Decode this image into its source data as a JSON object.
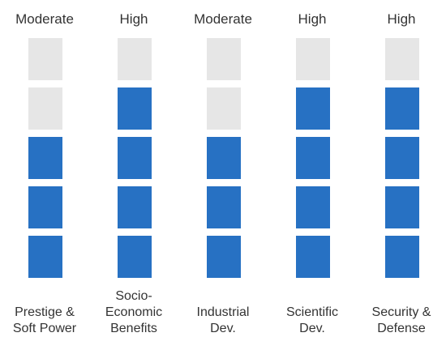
{
  "chart_data": {
    "type": "heatmap",
    "max_level": 5,
    "colors": {
      "filled": "#2771c3",
      "empty": "#e6e6e6",
      "text": "#333333"
    },
    "columns": [
      {
        "category": "Prestige &\nSoft Power",
        "level_label": "Moderate",
        "value": 3
      },
      {
        "category": "Socio-\nEconomic\nBenefits",
        "level_label": "High",
        "value": 4
      },
      {
        "category": "Industrial\nDev.",
        "level_label": "Moderate",
        "value": 3
      },
      {
        "category": "Scientific\nDev.",
        "level_label": "High",
        "value": 4
      },
      {
        "category": "Security &\nDefense",
        "level_label": "High",
        "value": 4
      }
    ]
  }
}
